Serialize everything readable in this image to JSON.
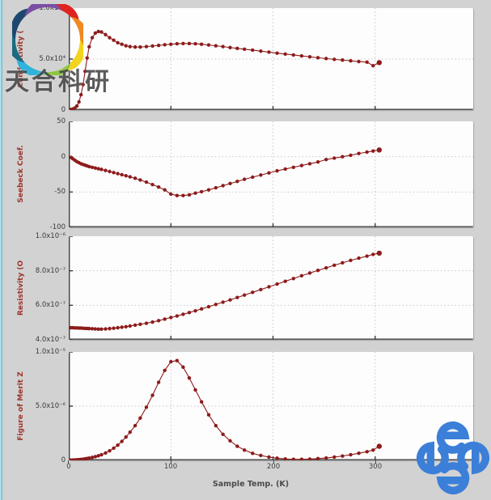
{
  "window": {
    "background": "#d2d2d2",
    "left_edge_color": "#58b6cf"
  },
  "watermark": {
    "text": "天合科研"
  },
  "series_color": "#8d1b1b",
  "logos": {
    "top_left": {
      "name": "tianhe-pinwheel-logo",
      "petal_colors": [
        "#df2420",
        "#f0891f",
        "#f2d31d",
        "#8cc63e",
        "#2fb3dd",
        "#1d6a80",
        "#1c4870",
        "#7a4fa3"
      ]
    },
    "bottom_right": {
      "name": "blue-swirl-logo",
      "color": "#3b7fd8"
    }
  },
  "x_axis": {
    "title": "Sample Temp. (K)",
    "lim": [
      0,
      396
    ],
    "ticks": [
      {
        "v": 0,
        "label": "0"
      },
      {
        "v": 100,
        "label": "100"
      },
      {
        "v": 200,
        "label": "200"
      },
      {
        "v": 300,
        "label": "300"
      }
    ]
  },
  "chart_data": [
    {
      "type": "scatter",
      "name": "conductivity-vs-temperature",
      "ylabel": "Conductivity (",
      "ylim": [
        0,
        100000
      ],
      "grid_y": [
        50000
      ],
      "yticks": [
        {
          "v": 100000,
          "label": "1.0x10⁵"
        },
        {
          "v": 50000,
          "label": "5.0x10⁴"
        },
        {
          "v": 0,
          "label": "0"
        }
      ],
      "x": [
        2,
        4,
        6,
        8,
        10,
        12,
        14,
        16,
        18,
        20,
        23,
        26,
        29,
        32,
        36,
        40,
        44,
        48,
        52,
        56,
        60,
        65,
        70,
        76,
        82,
        88,
        94,
        100,
        106,
        112,
        118,
        124,
        130,
        137,
        144,
        151,
        158,
        165,
        172,
        180,
        188,
        196,
        204,
        212,
        220,
        228,
        236,
        244,
        252,
        260,
        268,
        276,
        284,
        292,
        298,
        304
      ],
      "y": [
        500,
        1000,
        2000,
        4000,
        8000,
        15000,
        25000,
        38000,
        51000,
        62000,
        71000,
        75500,
        77000,
        76500,
        74000,
        71000,
        68500,
        66000,
        64500,
        63000,
        62200,
        61800,
        61800,
        62200,
        62800,
        63400,
        64000,
        64500,
        65000,
        65200,
        65200,
        65000,
        64500,
        63800,
        63000,
        62200,
        61300,
        60500,
        59700,
        58800,
        57800,
        56800,
        55800,
        54900,
        54000,
        53100,
        52200,
        51300,
        50500,
        49700,
        49000,
        48300,
        47600,
        47000,
        43500,
        46500
      ]
    },
    {
      "type": "scatter",
      "name": "seebeck-coefficient-vs-temperature",
      "ylabel": "Seebeck Coef.",
      "ylim": [
        -100,
        50
      ],
      "grid_y": [
        0,
        -50
      ],
      "yticks": [
        {
          "v": 50,
          "label": "50"
        },
        {
          "v": 0,
          "label": "0"
        },
        {
          "v": -50,
          "label": "-50"
        },
        {
          "v": -100,
          "label": "-100"
        }
      ],
      "x": [
        2,
        4,
        6,
        8,
        10,
        12,
        14,
        16,
        18,
        20,
        23,
        26,
        29,
        32,
        36,
        40,
        44,
        48,
        52,
        56,
        60,
        65,
        70,
        76,
        82,
        88,
        94,
        100,
        106,
        112,
        118,
        124,
        130,
        137,
        144,
        151,
        158,
        165,
        172,
        180,
        188,
        196,
        204,
        212,
        220,
        228,
        236,
        244,
        252,
        260,
        268,
        276,
        284,
        292,
        298,
        304
      ],
      "y": [
        -1,
        -3,
        -5,
        -7,
        -8.5,
        -10,
        -11,
        -12,
        -13,
        -14,
        -15,
        -16,
        -17,
        -18,
        -19.5,
        -21,
        -22.5,
        -24,
        -25.5,
        -27,
        -28.5,
        -30.5,
        -33,
        -36,
        -39.5,
        -43,
        -47,
        -53,
        -55,
        -55,
        -54,
        -51.5,
        -49.5,
        -47,
        -44,
        -41,
        -38,
        -35,
        -32,
        -29,
        -26,
        -23,
        -20,
        -17.5,
        -15,
        -12.5,
        -10,
        -7.5,
        -4,
        -2,
        0,
        2,
        4.5,
        6.5,
        8,
        9.5
      ]
    },
    {
      "type": "scatter",
      "name": "resistivity-vs-temperature",
      "ylabel": "Resistivity (O",
      "ylim": [
        4e-07,
        1e-06
      ],
      "grid_y": [
        8e-07,
        6e-07
      ],
      "yticks": [
        {
          "v": 1e-06,
          "label": "1.0x10⁻⁶"
        },
        {
          "v": 8e-07,
          "label": "8.0x10⁻⁷"
        },
        {
          "v": 6e-07,
          "label": "6.0x10⁻⁷"
        },
        {
          "v": 4e-07,
          "label": "4.0x10⁻⁷"
        }
      ],
      "x": [
        2,
        4,
        6,
        8,
        10,
        12,
        14,
        16,
        18,
        20,
        23,
        26,
        29,
        32,
        36,
        40,
        44,
        48,
        52,
        56,
        60,
        65,
        70,
        76,
        82,
        88,
        94,
        100,
        106,
        112,
        118,
        124,
        130,
        137,
        144,
        151,
        158,
        165,
        172,
        180,
        188,
        196,
        204,
        212,
        220,
        228,
        236,
        244,
        252,
        260,
        268,
        276,
        284,
        292,
        298,
        304
      ],
      "y": [
        4.7e-07,
        4.7e-07,
        4.69e-07,
        4.69e-07,
        4.68e-07,
        4.68e-07,
        4.67e-07,
        4.66e-07,
        4.66e-07,
        4.65e-07,
        4.64e-07,
        4.63e-07,
        4.62e-07,
        4.62e-07,
        4.63e-07,
        4.65e-07,
        4.67e-07,
        4.7e-07,
        4.73e-07,
        4.76e-07,
        4.8e-07,
        4.85e-07,
        4.9e-07,
        4.96e-07,
        5.03e-07,
        5.11e-07,
        5.2e-07,
        5.29e-07,
        5.38e-07,
        5.48e-07,
        5.58e-07,
        5.68e-07,
        5.79e-07,
        5.92e-07,
        6.05e-07,
        6.18e-07,
        6.31e-07,
        6.45e-07,
        6.59e-07,
        6.75e-07,
        6.91e-07,
        7.07e-07,
        7.23e-07,
        7.39e-07,
        7.55e-07,
        7.71e-07,
        7.87e-07,
        8.02e-07,
        8.17e-07,
        8.32e-07,
        8.46e-07,
        8.6e-07,
        8.73e-07,
        8.85e-07,
        8.95e-07,
        9.02e-07
      ]
    },
    {
      "type": "scatter",
      "name": "figure-of-merit-z-vs-temperature",
      "ylabel": "Figure of Merit Z",
      "ylim": [
        0,
        1e-05
      ],
      "grid_y": [
        5e-06
      ],
      "yticks": [
        {
          "v": 1e-05,
          "label": "1.0x10⁻⁵"
        },
        {
          "v": 5e-06,
          "label": "5.0x10⁻⁶"
        },
        {
          "v": 0,
          "label": "0"
        }
      ],
      "x": [
        2,
        4,
        6,
        8,
        10,
        12,
        14,
        16,
        18,
        20,
        23,
        26,
        29,
        32,
        36,
        40,
        44,
        48,
        52,
        56,
        60,
        65,
        70,
        76,
        82,
        88,
        94,
        100,
        106,
        112,
        118,
        124,
        130,
        137,
        144,
        151,
        158,
        165,
        172,
        180,
        188,
        196,
        204,
        212,
        220,
        228,
        236,
        244,
        252,
        260,
        268,
        276,
        284,
        292,
        298,
        304
      ],
      "y": [
        2e-08,
        3e-08,
        4e-08,
        5e-08,
        7e-08,
        9e-08,
        1.1e-07,
        1.4e-07,
        1.7e-07,
        2.1e-07,
        2.7e-07,
        3.4e-07,
        4.2e-07,
        5.2e-07,
        6.8e-07,
        8.8e-07,
        1.12e-06,
        1.4e-06,
        1.75e-06,
        2.15e-06,
        2.6e-06,
        3.2e-06,
        3.9e-06,
        4.9e-06,
        6e-06,
        7.2e-06,
        8.3e-06,
        9.1e-06,
        9.2e-06,
        8.6e-06,
        7.6e-06,
        6.5e-06,
        5.4e-06,
        4.2e-06,
        3.2e-06,
        2.4e-06,
        1.8e-06,
        1.3e-06,
        9.5e-07,
        6.5e-07,
        4.5e-07,
        3e-07,
        2e-07,
        1.3e-07,
        1e-07,
        1e-07,
        1.2e-07,
        1.6e-07,
        2.2e-07,
        3e-07,
        4e-07,
        5.2e-07,
        6.6e-07,
        8e-07,
        9.5e-07,
        1.3e-06
      ]
    }
  ]
}
